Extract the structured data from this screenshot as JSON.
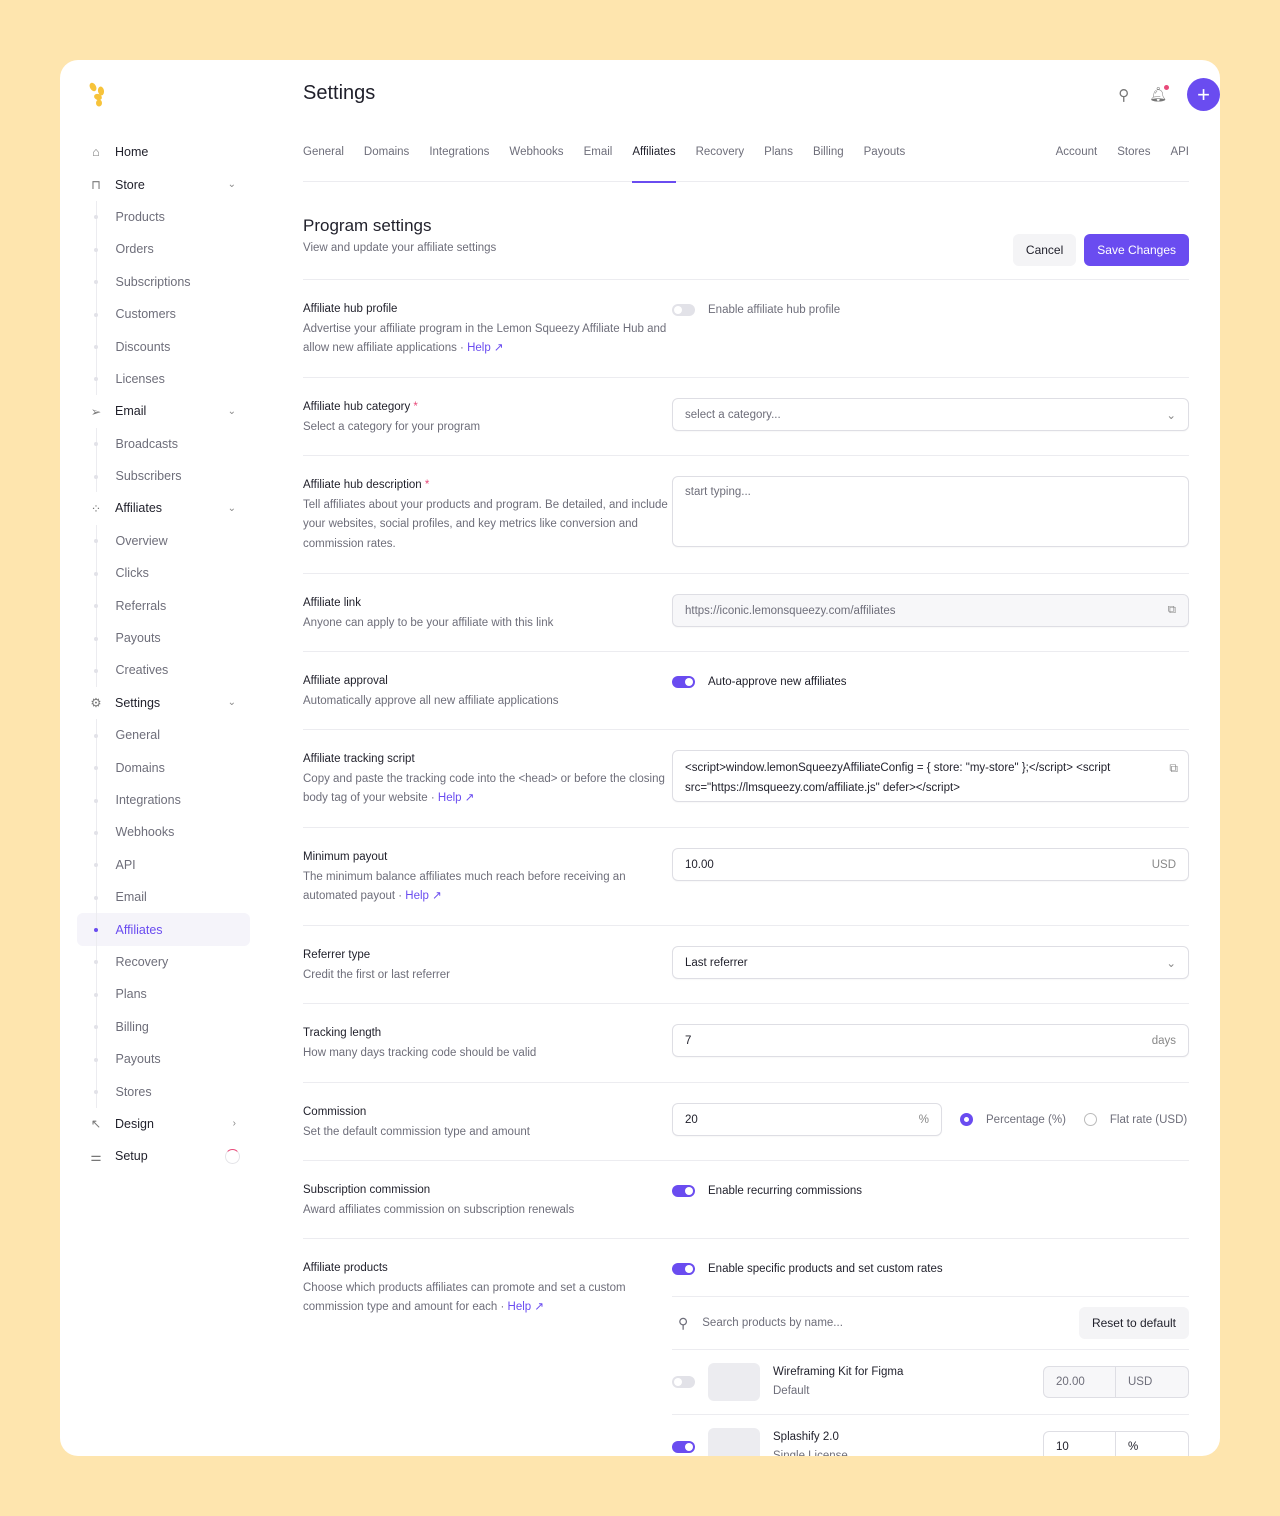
{
  "colors": {
    "accent": "#6a4cf0",
    "background": "#FEE5AE",
    "required": "#e84a7a"
  },
  "sidebar": [
    {
      "label": "Home",
      "type": "top",
      "icon": "home-icon",
      "glyph": "⌂"
    },
    {
      "label": "Store",
      "type": "top",
      "icon": "bag-icon",
      "glyph": "⊓",
      "chev": "⌄"
    },
    {
      "label": "Products",
      "type": "sub"
    },
    {
      "label": "Orders",
      "type": "sub"
    },
    {
      "label": "Subscriptions",
      "type": "sub"
    },
    {
      "label": "Customers",
      "type": "sub"
    },
    {
      "label": "Discounts",
      "type": "sub"
    },
    {
      "label": "Licenses",
      "type": "sub"
    },
    {
      "label": "Email",
      "type": "top",
      "icon": "send-icon",
      "glyph": "➢",
      "chev": "⌄"
    },
    {
      "label": "Broadcasts",
      "type": "sub"
    },
    {
      "label": "Subscribers",
      "type": "sub"
    },
    {
      "label": "Affiliates",
      "type": "top",
      "icon": "affiliates-icon",
      "glyph": "⁘",
      "chev": "⌄"
    },
    {
      "label": "Overview",
      "type": "sub"
    },
    {
      "label": "Clicks",
      "type": "sub"
    },
    {
      "label": "Referrals",
      "type": "sub"
    },
    {
      "label": "Payouts",
      "type": "sub"
    },
    {
      "label": "Creatives",
      "type": "sub"
    },
    {
      "label": "Settings",
      "type": "top",
      "icon": "gear-icon",
      "glyph": "⚙",
      "chev": "⌄"
    },
    {
      "label": "General",
      "type": "sub"
    },
    {
      "label": "Domains",
      "type": "sub"
    },
    {
      "label": "Integrations",
      "type": "sub"
    },
    {
      "label": "Webhooks",
      "type": "sub"
    },
    {
      "label": "API",
      "type": "sub"
    },
    {
      "label": "Email",
      "type": "sub"
    },
    {
      "label": "Affiliates",
      "type": "sub",
      "active": true
    },
    {
      "label": "Recovery",
      "type": "sub"
    },
    {
      "label": "Plans",
      "type": "sub"
    },
    {
      "label": "Billing",
      "type": "sub"
    },
    {
      "label": "Payouts",
      "type": "sub"
    },
    {
      "label": "Stores",
      "type": "sub"
    },
    {
      "label": "Design",
      "type": "top",
      "icon": "cursor-icon",
      "glyph": "↖",
      "chev": "›"
    },
    {
      "label": "Setup",
      "type": "top",
      "icon": "sliders-icon",
      "glyph": "⚌",
      "progress": true
    }
  ],
  "header": {
    "title": "Settings"
  },
  "tabs": [
    "General",
    "Domains",
    "Integrations",
    "Webhooks",
    "Email",
    "Affiliates",
    "Recovery",
    "Plans",
    "Billing",
    "Payouts"
  ],
  "tabs_active": "Affiliates",
  "tabs_right": [
    "Account",
    "Stores",
    "API"
  ],
  "program": {
    "title": "Program settings",
    "subtitle": "View and update your affiliate settings",
    "cancel": "Cancel",
    "save": "Save Changes"
  },
  "rows": {
    "hub_profile": {
      "title": "Affiliate hub profile",
      "desc": "Advertise your affiliate program in the Lemon Squeezy Affiliate Hub and allow new affiliate applications · ",
      "help": "Help ↗",
      "toggle": "Enable affiliate hub profile",
      "on": false
    },
    "category": {
      "title": "Affiliate hub category",
      "desc": "Select a category for your program",
      "placeholder": "select a category..."
    },
    "description": {
      "title": "Affiliate hub description",
      "desc": "Tell affiliates about your products and program. Be detailed, and include your websites, social profiles, and key metrics like conversion and commission rates.",
      "placeholder": "start typing..."
    },
    "link": {
      "title": "Affiliate link",
      "desc": "Anyone can apply to be your affiliate with this link",
      "value": "https://iconic.lemonsqueezy.com/affiliates"
    },
    "approval": {
      "title": "Affiliate approval",
      "desc": "Automatically approve all new affiliate applications",
      "toggle": "Auto-approve new affiliates",
      "on": true
    },
    "script": {
      "title": "Affiliate tracking script",
      "desc": "Copy and paste the tracking code into the <head> or before the closing body tag of your website · ",
      "help": "Help ↗",
      "value": "<script>window.lemonSqueezyAffiliateConfig = { store: \"my-store\" };</script> <script src=\"https://lmsqueezy.com/affiliate.js\" defer></script>"
    },
    "min_payout": {
      "title": "Minimum payout",
      "desc": "The minimum balance affiliates much reach before receiving an automated payout · ",
      "help": "Help ↗",
      "value": "10.00",
      "suffix": "USD"
    },
    "referrer": {
      "title": "Referrer type",
      "desc": "Credit the first or last referrer",
      "value": "Last referrer"
    },
    "tracking": {
      "title": "Tracking length",
      "desc": "How many days tracking code should be valid",
      "value": "7",
      "suffix": "days"
    },
    "commission": {
      "title": "Commission",
      "desc": "Set the default commission type and amount",
      "value": "20",
      "suffix": "%",
      "opt1": "Percentage (%)",
      "opt2": "Flat rate (USD)",
      "selected": "Percentage (%)"
    },
    "subscription": {
      "title": "Subscription commission",
      "desc": "Award affiliates commission on subscription renewals",
      "toggle": "Enable recurring commissions",
      "on": true
    },
    "products": {
      "title": "Affiliate products",
      "desc": "Choose which products affiliates can promote and set a custom commission type and amount for each · ",
      "help": "Help ↗",
      "toggle": "Enable specific products and set custom rates",
      "on": true,
      "search_placeholder": "Search products by name...",
      "reset": "Reset to default",
      "items": [
        {
          "name": "Wireframing Kit for Figma",
          "variant": "Default",
          "amount": "20.00",
          "unit": "USD",
          "on": false
        },
        {
          "name": "Splashify 2.0",
          "variant": "Single License",
          "amount": "10",
          "unit": "%",
          "on": true
        }
      ]
    }
  }
}
